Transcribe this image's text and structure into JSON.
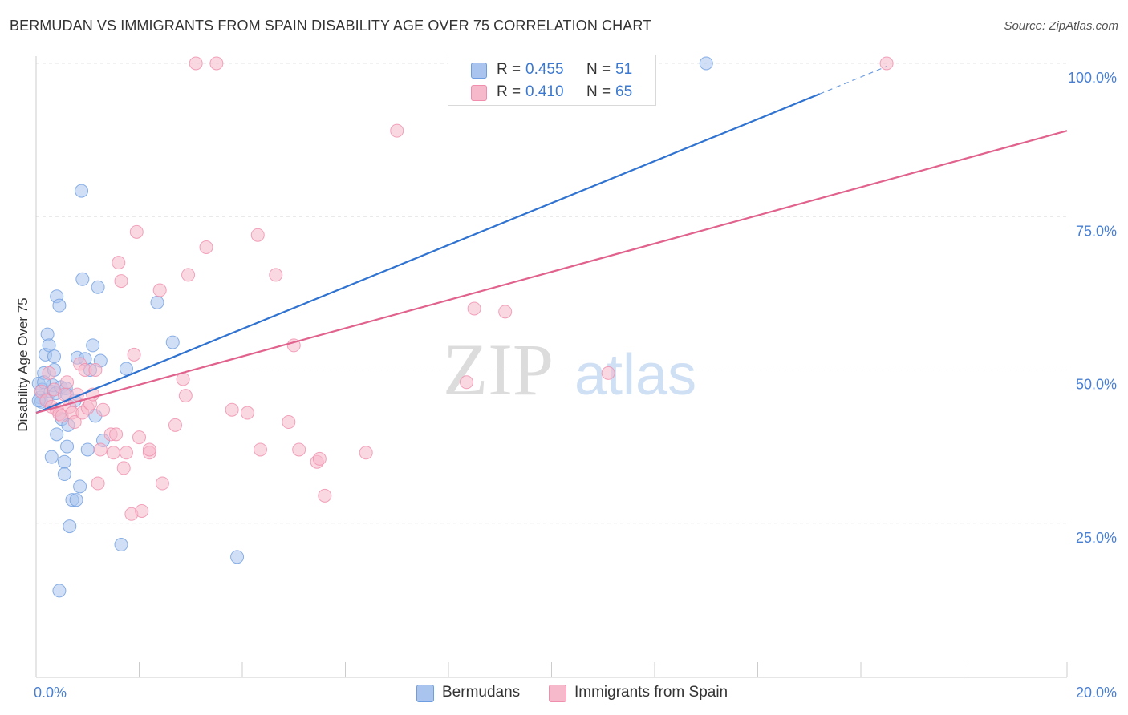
{
  "title": "BERMUDAN VS IMMIGRANTS FROM SPAIN DISABILITY AGE OVER 75 CORRELATION CHART",
  "source": "Source: ZipAtlas.com",
  "watermark": {
    "zip": "ZIP",
    "atlas": "atlas"
  },
  "legend_top": {
    "rows": [
      {
        "r_label": "R =",
        "r_value": "0.455",
        "n_label": "N =",
        "n_value": "51",
        "color": "#a9c5ef"
      },
      {
        "r_label": "R =",
        "r_value": "0.410",
        "n_label": "N =",
        "n_value": "65",
        "color": "#f6b8cb"
      }
    ]
  },
  "legend_bottom": [
    {
      "label": "Bermudans",
      "color": "#a9c5ef"
    },
    {
      "label": "Immigrants from Spain",
      "color": "#f6b8cb"
    }
  ],
  "chart_data": {
    "type": "scatter",
    "title": "BERMUDAN VS IMMIGRANTS FROM SPAIN DISABILITY AGE OVER 75 CORRELATION CHART",
    "xlabel": "",
    "ylabel": "Disability Age Over 75",
    "xlim": [
      0,
      20
    ],
    "ylim": [
      2,
      103
    ],
    "x_tick_labels": [
      {
        "value": 0,
        "label": "0.0%"
      },
      {
        "value": 20,
        "label": "20.0%"
      }
    ],
    "y_tick_labels": [
      {
        "value": 25,
        "label": "25.0%"
      },
      {
        "value": 50,
        "label": "50.0%"
      },
      {
        "value": 75,
        "label": "75.0%"
      },
      {
        "value": 100,
        "label": "100.0%"
      }
    ],
    "grid": true,
    "series": [
      {
        "name": "Bermudans",
        "color": "#6f9ee0",
        "fill": "#a9c5ef",
        "line_color": "#2f72d0",
        "trend": {
          "x0": 0.0,
          "y0": 43.0,
          "x1": 15.2,
          "y1": 95.0,
          "dash_x1": 16.5,
          "dash_y1": 99.5
        },
        "points": [
          [
            0.05,
            47.8
          ],
          [
            0.08,
            45.5
          ],
          [
            0.1,
            44.8
          ],
          [
            0.12,
            46.8
          ],
          [
            0.15,
            49.5
          ],
          [
            0.18,
            52.5
          ],
          [
            0.2,
            45.2
          ],
          [
            0.22,
            55.8
          ],
          [
            0.25,
            54.0
          ],
          [
            0.28,
            46.5
          ],
          [
            0.3,
            35.8
          ],
          [
            0.32,
            47.5
          ],
          [
            0.35,
            52.2
          ],
          [
            0.38,
            46.2
          ],
          [
            0.4,
            39.5
          ],
          [
            0.4,
            62.0
          ],
          [
            0.45,
            60.5
          ],
          [
            0.45,
            14.0
          ],
          [
            0.48,
            47.2
          ],
          [
            0.5,
            42.0
          ],
          [
            0.55,
            35.0
          ],
          [
            0.55,
            33.0
          ],
          [
            0.58,
            47.0
          ],
          [
            0.6,
            37.5
          ],
          [
            0.62,
            41.0
          ],
          [
            0.6,
            46.0
          ],
          [
            0.65,
            24.5
          ],
          [
            0.7,
            28.8
          ],
          [
            0.75,
            45.0
          ],
          [
            0.78,
            28.8
          ],
          [
            0.8,
            52.0
          ],
          [
            0.85,
            31.0
          ],
          [
            0.88,
            79.2
          ],
          [
            0.9,
            64.8
          ],
          [
            0.95,
            51.8
          ],
          [
            1.0,
            37.0
          ],
          [
            1.05,
            50.0
          ],
          [
            1.1,
            54.0
          ],
          [
            1.15,
            42.5
          ],
          [
            1.2,
            63.5
          ],
          [
            1.25,
            51.5
          ],
          [
            1.3,
            38.5
          ],
          [
            1.65,
            21.5
          ],
          [
            1.75,
            50.2
          ],
          [
            2.35,
            61.0
          ],
          [
            2.65,
            54.5
          ],
          [
            3.9,
            19.5
          ],
          [
            13.0,
            100.0
          ],
          [
            0.15,
            48.0
          ],
          [
            0.35,
            50.0
          ],
          [
            0.05,
            45.0
          ]
        ]
      },
      {
        "name": "Immigrants from Spain",
        "color": "#ef8fad",
        "fill": "#f6b8cb",
        "line_color": "#e0628d",
        "trend": {
          "x0": 0.0,
          "y0": 43.0,
          "x1": 20.0,
          "y1": 89.0
        },
        "points": [
          [
            0.1,
            46.5
          ],
          [
            0.2,
            45.0
          ],
          [
            0.25,
            49.5
          ],
          [
            0.3,
            44.0
          ],
          [
            0.35,
            46.8
          ],
          [
            0.4,
            43.5
          ],
          [
            0.45,
            42.8
          ],
          [
            0.5,
            42.5
          ],
          [
            0.55,
            46.0
          ],
          [
            0.6,
            48.0
          ],
          [
            0.65,
            44.0
          ],
          [
            0.7,
            43.0
          ],
          [
            0.75,
            41.5
          ],
          [
            0.8,
            46.0
          ],
          [
            0.85,
            51.0
          ],
          [
            0.9,
            43.0
          ],
          [
            0.95,
            50.0
          ],
          [
            1.0,
            43.8
          ],
          [
            1.05,
            44.5
          ],
          [
            1.1,
            46.0
          ],
          [
            1.15,
            50.0
          ],
          [
            1.2,
            31.5
          ],
          [
            1.25,
            37.0
          ],
          [
            1.3,
            43.5
          ],
          [
            1.45,
            39.5
          ],
          [
            1.5,
            36.5
          ],
          [
            1.55,
            39.5
          ],
          [
            1.6,
            67.5
          ],
          [
            1.65,
            64.5
          ],
          [
            1.7,
            34.0
          ],
          [
            1.75,
            36.5
          ],
          [
            1.85,
            26.5
          ],
          [
            1.9,
            52.5
          ],
          [
            1.95,
            72.5
          ],
          [
            2.0,
            39.0
          ],
          [
            2.05,
            27.0
          ],
          [
            2.2,
            36.5
          ],
          [
            2.2,
            37.0
          ],
          [
            2.4,
            63.0
          ],
          [
            2.45,
            31.5
          ],
          [
            2.7,
            41.0
          ],
          [
            2.85,
            48.5
          ],
          [
            2.9,
            45.8
          ],
          [
            2.95,
            65.5
          ],
          [
            3.1,
            100.0
          ],
          [
            3.5,
            100.0
          ],
          [
            3.3,
            70.0
          ],
          [
            3.8,
            43.5
          ],
          [
            4.1,
            43.0
          ],
          [
            4.3,
            72.0
          ],
          [
            4.35,
            37.0
          ],
          [
            4.65,
            65.5
          ],
          [
            4.9,
            41.5
          ],
          [
            5.0,
            54.0
          ],
          [
            5.1,
            37.0
          ],
          [
            5.45,
            35.0
          ],
          [
            5.5,
            35.5
          ],
          [
            5.6,
            29.5
          ],
          [
            6.4,
            36.5
          ],
          [
            7.0,
            89.0
          ],
          [
            8.35,
            48.0
          ],
          [
            8.5,
            60.0
          ],
          [
            9.1,
            59.5
          ],
          [
            11.1,
            49.5
          ],
          [
            16.5,
            100.0
          ]
        ]
      }
    ]
  }
}
